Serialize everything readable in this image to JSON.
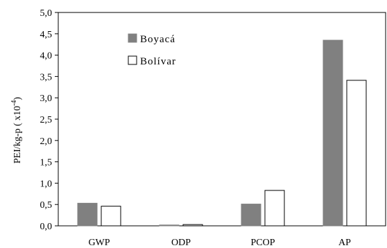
{
  "chart_data": {
    "type": "bar",
    "categories": [
      "GWP",
      "ODP",
      "PCOP",
      "AP"
    ],
    "series": [
      {
        "name": "Boyacá",
        "values": [
          0.53,
          0.02,
          0.51,
          4.35
        ],
        "color": "#808080",
        "fill": "#808080"
      },
      {
        "name": "Bolívar",
        "values": [
          0.46,
          0.03,
          0.83,
          3.41
        ],
        "color": "#000000",
        "fill": "#ffffff"
      }
    ],
    "ylabel_main": "PEI/kg-p ( x10",
    "ylabel_sup": "-4",
    "ylabel_end": ")",
    "ylim": [
      0,
      5
    ],
    "yticks": [
      "0,0",
      "0,5",
      "1,0",
      "1,5",
      "2,0",
      "2,5",
      "3,0",
      "3,5",
      "4,0",
      "4,5",
      "5,0"
    ],
    "ytick_values": [
      0,
      0.5,
      1,
      1.5,
      2,
      2.5,
      3,
      3.5,
      4,
      4.5,
      5
    ],
    "grid": false,
    "legend_position": "top-left-inside"
  }
}
